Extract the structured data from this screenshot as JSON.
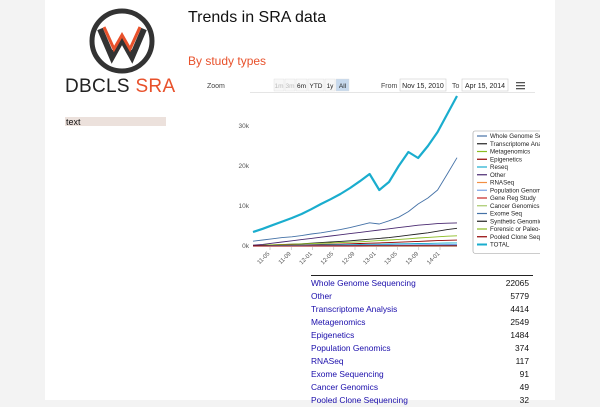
{
  "brand": {
    "name_part1": "DBCLS",
    "name_part2": "SRA"
  },
  "sidebar": {
    "input_value": "text"
  },
  "page": {
    "title": "Trends in SRA data",
    "section_title": "By study types"
  },
  "chart_controls": {
    "zoom_label": "Zoom",
    "zoom_buttons": [
      "1m",
      "3m",
      "6m",
      "YTD",
      "1y",
      "All"
    ],
    "zoom_selected": "All",
    "from_label": "From",
    "from_value": "Nov 15, 2010",
    "to_label": "To",
    "to_value": "Apr 15, 2014"
  },
  "chart_data": {
    "type": "line",
    "x_tick_labels": [
      "11-05",
      "11-09",
      "12-01",
      "12-05",
      "12-09",
      "13-01",
      "13-05",
      "13-09",
      "14-01"
    ],
    "x": [
      "2010-11",
      "2011-01",
      "2011-03",
      "2011-05",
      "2011-07",
      "2011-09",
      "2011-11",
      "2012-01",
      "2012-03",
      "2012-05",
      "2012-07",
      "2012-09",
      "2012-11",
      "2013-01",
      "2013-03",
      "2013-05",
      "2013-07",
      "2013-09",
      "2013-11",
      "2014-01",
      "2014-03",
      "2014-04"
    ],
    "yticks": [
      "0k",
      "10k",
      "20k",
      "30k"
    ],
    "ylim": [
      0,
      37000
    ],
    "grid": false,
    "legend_position": "right",
    "series": [
      {
        "name": "Whole Genome Seq",
        "color": "#4572a7",
        "values": [
          1200,
          1500,
          1800,
          2100,
          2300,
          2600,
          3000,
          3300,
          3700,
          4100,
          4600,
          5200,
          5800,
          5500,
          6300,
          7200,
          8600,
          10500,
          12000,
          14000,
          18000,
          22065
        ]
      },
      {
        "name": "Transcriptome Analysis",
        "color": "#222222",
        "values": [
          100,
          150,
          250,
          350,
          450,
          550,
          700,
          850,
          1000,
          1150,
          1300,
          1500,
          1700,
          1900,
          2100,
          2400,
          2700,
          3000,
          3300,
          3700,
          4100,
          4414
        ]
      },
      {
        "name": "Metagenomics",
        "color": "#8bbc21",
        "values": [
          200,
          250,
          300,
          380,
          450,
          520,
          600,
          680,
          760,
          850,
          950,
          1050,
          1200,
          1350,
          1500,
          1650,
          1800,
          2000,
          2150,
          2300,
          2450,
          2549
        ]
      },
      {
        "name": "Epigenetics",
        "color": "#910000",
        "values": [
          100,
          130,
          160,
          200,
          240,
          280,
          320,
          380,
          430,
          480,
          550,
          620,
          700,
          780,
          860,
          950,
          1050,
          1150,
          1250,
          1350,
          1420,
          1484
        ]
      },
      {
        "name": "Reseq",
        "color": "#1aadce",
        "values": [
          50,
          80,
          110,
          140,
          170,
          200,
          230,
          260,
          290,
          320,
          350,
          380,
          420,
          460,
          500,
          540,
          580,
          620,
          660,
          700,
          740,
          780
        ]
      },
      {
        "name": "Other",
        "color": "#492970",
        "values": [
          200,
          400,
          700,
          1000,
          1300,
          1600,
          1900,
          2200,
          2500,
          2800,
          3100,
          3400,
          3700,
          4000,
          4300,
          4600,
          4900,
          5200,
          5400,
          5600,
          5700,
          5779
        ]
      },
      {
        "name": "RNASeq",
        "color": "#f28f43",
        "values": [
          5,
          8,
          12,
          15,
          20,
          25,
          30,
          35,
          40,
          45,
          50,
          55,
          60,
          65,
          70,
          75,
          80,
          85,
          95,
          105,
          112,
          117
        ]
      },
      {
        "name": "Population Genomics",
        "color": "#77a1e5",
        "values": [
          20,
          30,
          45,
          60,
          75,
          90,
          110,
          130,
          150,
          170,
          190,
          210,
          230,
          250,
          270,
          290,
          310,
          330,
          345,
          355,
          365,
          374
        ]
      },
      {
        "name": "Gene Reg Study",
        "color": "#c42525",
        "values": [
          10,
          15,
          20,
          25,
          30,
          35,
          40,
          45,
          50,
          55,
          60,
          65,
          70,
          75,
          80,
          85,
          90,
          95,
          100,
          105,
          110,
          115
        ]
      },
      {
        "name": "Cancer Genomics",
        "color": "#a6c96a",
        "values": [
          2,
          3,
          5,
          7,
          9,
          11,
          13,
          15,
          17,
          19,
          21,
          23,
          25,
          27,
          30,
          33,
          36,
          39,
          42,
          45,
          47,
          49
        ]
      },
      {
        "name": "Exome Seq",
        "color": "#4572a7",
        "values": [
          5,
          8,
          12,
          16,
          20,
          24,
          28,
          32,
          36,
          40,
          44,
          48,
          52,
          56,
          60,
          64,
          68,
          72,
          78,
          84,
          88,
          91
        ]
      },
      {
        "name": "Synthetic Genomics",
        "color": "#222222",
        "values": [
          1,
          1,
          2,
          2,
          3,
          3,
          4,
          4,
          5,
          5,
          6,
          6,
          7,
          7,
          8,
          8,
          9,
          9,
          10,
          10,
          11,
          11
        ]
      },
      {
        "name": "Forensic or Paleo-genomics",
        "color": "#8bbc21",
        "values": [
          1,
          1,
          2,
          2,
          3,
          3,
          4,
          4,
          5,
          5,
          6,
          6,
          7,
          7,
          8,
          8,
          9,
          9,
          10,
          10,
          11,
          12
        ]
      },
      {
        "name": "Pooled Clone Seq",
        "color": "#910000",
        "values": [
          1,
          2,
          3,
          4,
          5,
          6,
          7,
          8,
          9,
          10,
          11,
          12,
          14,
          16,
          18,
          20,
          22,
          24,
          26,
          28,
          30,
          32
        ]
      },
      {
        "name": "TOTAL",
        "color": "#1aadce",
        "values": [
          3500,
          4300,
          5200,
          6100,
          7000,
          8000,
          9200,
          10500,
          11700,
          13000,
          14500,
          16200,
          18000,
          14000,
          16000,
          20000,
          23500,
          22000,
          25000,
          28500,
          33000,
          37500
        ]
      }
    ]
  },
  "summary_table": {
    "rows": [
      {
        "name": "Whole Genome Sequencing",
        "value": "22065"
      },
      {
        "name": "Other",
        "value": "5779"
      },
      {
        "name": "Transcriptome Analysis",
        "value": "4414"
      },
      {
        "name": "Metagenomics",
        "value": "2549"
      },
      {
        "name": "Epigenetics",
        "value": "1484"
      },
      {
        "name": "Population Genomics",
        "value": "374"
      },
      {
        "name": "RNASeq",
        "value": "117"
      },
      {
        "name": "Exome Sequencing",
        "value": "91"
      },
      {
        "name": "Cancer Genomics",
        "value": "49"
      },
      {
        "name": "Pooled Clone Sequencing",
        "value": "32"
      }
    ]
  }
}
